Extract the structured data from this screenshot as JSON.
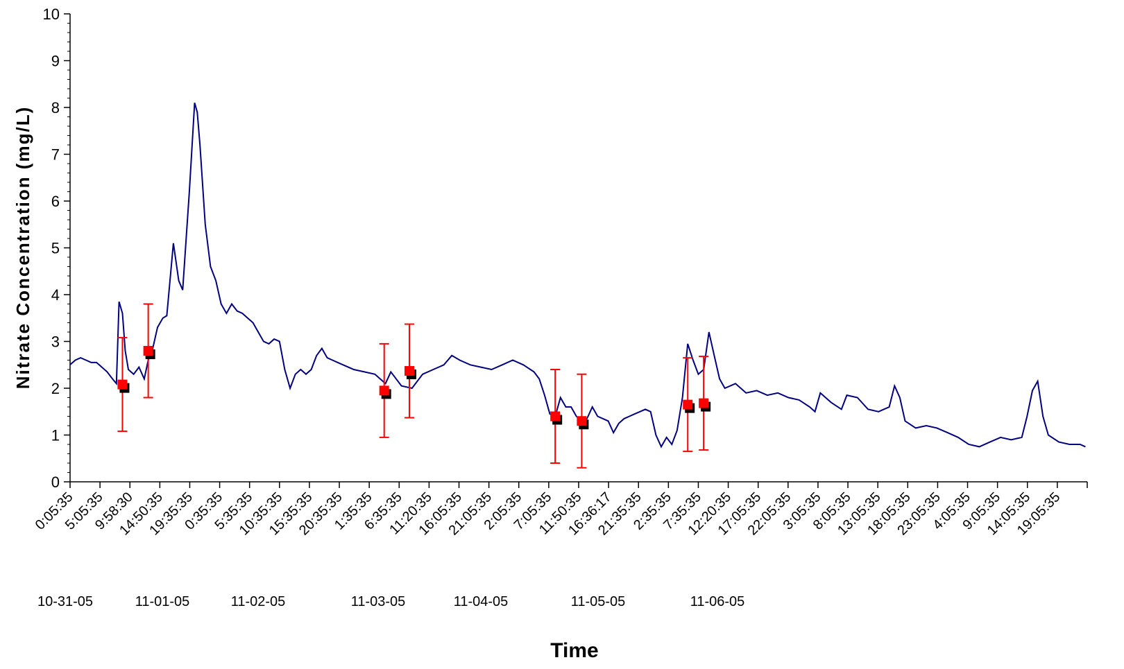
{
  "chart_data": {
    "type": "line",
    "title": "",
    "xlabel": "Time",
    "ylabel": "Nitrate Concentration (mg/L)",
    "ylim": [
      0,
      10
    ],
    "yticks": [
      0,
      1,
      2,
      3,
      4,
      5,
      6,
      7,
      8,
      9,
      10
    ],
    "grid": false,
    "legend": "none",
    "x_start": "10-31-05 0:05:35",
    "x_end": "11-07-05 23:55:35",
    "x_tick_labels": [
      "0:05:35",
      "5:05:35",
      "9:58:30",
      "14:50:35",
      "19:35:35",
      "0:35:35",
      "5:35:35",
      "10:35:35",
      "15:35:35",
      "20:35:35",
      "1:35:35",
      "6:35:35",
      "11:20:35",
      "16:05:35",
      "21:05:35",
      "2:05:35",
      "7:05:35",
      "11:50:35",
      "16:36:17",
      "21:35:35",
      "2:35:35",
      "7:35:35",
      "12:20:35",
      "17:05:35",
      "22:05:35",
      "3:05:35",
      "8:05:35",
      "13:05:35",
      "18:05:35",
      "23:05:35",
      "4:05:35",
      "9:05:35",
      "14:05:35",
      "19:05:35"
    ],
    "date_labels": [
      "10-31-05",
      "11-01-05",
      "11-02-05",
      "11-03-05",
      "11-04-05",
      "11-05-05",
      "11-06-05"
    ],
    "series": [
      {
        "type": "line",
        "color": "#000080",
        "points": [
          [
            "10-31-05 0:05",
            2.5
          ],
          [
            "10-31-05 1:05",
            2.6
          ],
          [
            "10-31-05 2:05",
            2.65
          ],
          [
            "10-31-05 3:05",
            2.6
          ],
          [
            "10-31-05 4:05",
            2.55
          ],
          [
            "10-31-05 5:05",
            2.55
          ],
          [
            "10-31-05 6:05",
            2.45
          ],
          [
            "10-31-05 7:05",
            2.35
          ],
          [
            "10-31-05 8:05",
            2.2
          ],
          [
            "10-31-05 8:50",
            2.1
          ],
          [
            "10-31-05 9:20",
            3.85
          ],
          [
            "10-31-05 9:58",
            3.6
          ],
          [
            "10-31-05 10:30",
            2.8
          ],
          [
            "10-31-05 11:05",
            2.4
          ],
          [
            "10-31-05 12:05",
            2.3
          ],
          [
            "10-31-05 13:05",
            2.45
          ],
          [
            "10-31-05 14:05",
            2.2
          ],
          [
            "10-31-05 14:50",
            2.6
          ],
          [
            "10-31-05 15:35",
            2.8
          ],
          [
            "10-31-05 16:35",
            3.3
          ],
          [
            "10-31-05 17:35",
            3.5
          ],
          [
            "10-31-05 18:20",
            3.55
          ],
          [
            "10-31-05 19:35",
            5.1
          ],
          [
            "10-31-05 20:35",
            4.3
          ],
          [
            "10-31-05 21:20",
            4.1
          ],
          [
            "10-31-05 22:35",
            6.2
          ],
          [
            "10-31-05 23:35",
            8.1
          ],
          [
            "11-01-05 0:05",
            7.9
          ],
          [
            "11-01-05 0:35",
            7.2
          ],
          [
            "11-01-05 1:35",
            5.5
          ],
          [
            "11-01-05 2:35",
            4.6
          ],
          [
            "11-01-05 3:35",
            4.3
          ],
          [
            "11-01-05 4:35",
            3.8
          ],
          [
            "11-01-05 5:35",
            3.6
          ],
          [
            "11-01-05 6:35",
            3.8
          ],
          [
            "11-01-05 7:35",
            3.65
          ],
          [
            "11-01-05 8:35",
            3.6
          ],
          [
            "11-01-05 9:35",
            3.5
          ],
          [
            "11-01-05 10:35",
            3.4
          ],
          [
            "11-01-05 11:35",
            3.2
          ],
          [
            "11-01-05 12:35",
            3.0
          ],
          [
            "11-01-05 13:35",
            2.95
          ],
          [
            "11-01-05 14:35",
            3.05
          ],
          [
            "11-01-05 15:35",
            3.0
          ],
          [
            "11-01-05 16:35",
            2.4
          ],
          [
            "11-01-05 17:35",
            2.0
          ],
          [
            "11-01-05 18:35",
            2.3
          ],
          [
            "11-01-05 19:35",
            2.4
          ],
          [
            "11-01-05 20:35",
            2.3
          ],
          [
            "11-01-05 21:35",
            2.4
          ],
          [
            "11-01-05 22:35",
            2.7
          ],
          [
            "11-01-05 23:35",
            2.85
          ],
          [
            "11-02-05 0:35",
            2.65
          ],
          [
            "11-02-05 1:35",
            2.6
          ],
          [
            "11-02-05 2:35",
            2.55
          ],
          [
            "11-02-05 3:35",
            2.5
          ],
          [
            "11-02-05 5:35",
            2.4
          ],
          [
            "11-02-05 7:35",
            2.35
          ],
          [
            "11-02-05 9:35",
            2.3
          ],
          [
            "11-02-05 11:35",
            2.1
          ],
          [
            "11-02-05 12:35",
            2.35
          ],
          [
            "11-02-05 14:35",
            2.05
          ],
          [
            "11-02-05 16:35",
            2.0
          ],
          [
            "11-02-05 18:35",
            2.3
          ],
          [
            "11-02-05 20:35",
            2.4
          ],
          [
            "11-02-05 22:35",
            2.5
          ],
          [
            "11-03-05 0:05",
            2.7
          ],
          [
            "11-03-05 1:35",
            2.6
          ],
          [
            "11-03-05 3:35",
            2.5
          ],
          [
            "11-03-05 5:35",
            2.45
          ],
          [
            "11-03-05 7:35",
            2.4
          ],
          [
            "11-03-05 9:35",
            2.5
          ],
          [
            "11-03-05 11:35",
            2.6
          ],
          [
            "11-03-05 13:35",
            2.5
          ],
          [
            "11-03-05 15:35",
            2.35
          ],
          [
            "11-03-05 16:35",
            2.2
          ],
          [
            "11-03-05 17:35",
            1.85
          ],
          [
            "11-03-05 18:35",
            1.45
          ],
          [
            "11-03-05 19:35",
            1.4
          ],
          [
            "11-03-05 20:35",
            1.8
          ],
          [
            "11-03-05 21:35",
            1.6
          ],
          [
            "11-03-05 22:35",
            1.6
          ],
          [
            "11-03-05 23:35",
            1.4
          ],
          [
            "11-04-05 0:35",
            1.3
          ],
          [
            "11-04-05 1:35",
            1.35
          ],
          [
            "11-04-05 2:35",
            1.6
          ],
          [
            "11-04-05 3:35",
            1.4
          ],
          [
            "11-04-05 4:35",
            1.35
          ],
          [
            "11-04-05 5:35",
            1.3
          ],
          [
            "11-04-05 6:35",
            1.05
          ],
          [
            "11-04-05 7:35",
            1.25
          ],
          [
            "11-04-05 8:35",
            1.35
          ],
          [
            "11-04-05 9:35",
            1.4
          ],
          [
            "11-04-05 10:35",
            1.45
          ],
          [
            "11-04-05 11:35",
            1.5
          ],
          [
            "11-04-05 12:35",
            1.55
          ],
          [
            "11-04-05 13:35",
            1.5
          ],
          [
            "11-04-05 14:35",
            1.0
          ],
          [
            "11-04-05 15:35",
            0.75
          ],
          [
            "11-04-05 16:35",
            0.95
          ],
          [
            "11-04-05 17:35",
            0.8
          ],
          [
            "11-04-05 18:35",
            1.1
          ],
          [
            "11-04-05 19:35",
            1.8
          ],
          [
            "11-04-05 20:35",
            2.95
          ],
          [
            "11-04-05 21:35",
            2.6
          ],
          [
            "11-04-05 22:35",
            2.3
          ],
          [
            "11-04-05 23:35",
            2.4
          ],
          [
            "11-05-05 0:35",
            3.2
          ],
          [
            "11-05-05 1:35",
            2.7
          ],
          [
            "11-05-05 2:35",
            2.2
          ],
          [
            "11-05-05 3:35",
            2.0
          ],
          [
            "11-05-05 5:35",
            2.1
          ],
          [
            "11-05-05 7:35",
            1.9
          ],
          [
            "11-05-05 9:35",
            1.95
          ],
          [
            "11-05-05 11:35",
            1.85
          ],
          [
            "11-05-05 13:35",
            1.9
          ],
          [
            "11-05-05 15:35",
            1.8
          ],
          [
            "11-05-05 17:35",
            1.75
          ],
          [
            "11-05-05 19:35",
            1.6
          ],
          [
            "11-05-05 20:35",
            1.5
          ],
          [
            "11-05-05 21:35",
            1.9
          ],
          [
            "11-05-05 23:35",
            1.7
          ],
          [
            "11-06-05 1:35",
            1.55
          ],
          [
            "11-06-05 2:35",
            1.85
          ],
          [
            "11-06-05 4:35",
            1.8
          ],
          [
            "11-06-05 6:35",
            1.55
          ],
          [
            "11-06-05 8:35",
            1.5
          ],
          [
            "11-06-05 10:35",
            1.6
          ],
          [
            "11-06-05 11:35",
            2.05
          ],
          [
            "11-06-05 12:35",
            1.8
          ],
          [
            "11-06-05 13:35",
            1.3
          ],
          [
            "11-06-05 15:35",
            1.15
          ],
          [
            "11-06-05 17:35",
            1.2
          ],
          [
            "11-06-05 19:35",
            1.15
          ],
          [
            "11-06-05 21:35",
            1.05
          ],
          [
            "11-06-05 23:35",
            0.95
          ],
          [
            "11-07-05 1:35",
            0.8
          ],
          [
            "11-07-05 3:35",
            0.75
          ],
          [
            "11-07-05 5:35",
            0.85
          ],
          [
            "11-07-05 7:35",
            0.95
          ],
          [
            "11-07-05 9:35",
            0.9
          ],
          [
            "11-07-05 11:35",
            0.95
          ],
          [
            "11-07-05 12:35",
            1.4
          ],
          [
            "11-07-05 13:35",
            1.95
          ],
          [
            "11-07-05 14:35",
            2.15
          ],
          [
            "11-07-05 15:35",
            1.4
          ],
          [
            "11-07-05 16:35",
            1.0
          ],
          [
            "11-07-05 18:35",
            0.85
          ],
          [
            "11-07-05 20:35",
            0.8
          ],
          [
            "11-07-05 22:35",
            0.8
          ],
          [
            "11-07-05 23:35",
            0.75
          ]
        ]
      },
      {
        "type": "scatter",
        "marker": "square",
        "color": "#ff0000",
        "shadow_color": "#000000",
        "error_bar_color": "#ff0000",
        "points": [
          {
            "x": "10-31-05 9:58",
            "y": 2.08,
            "err": 1.0
          },
          {
            "x": "10-31-05 14:50",
            "y": 2.8,
            "err": 1.0
          },
          {
            "x": "11-02-05 11:20",
            "y": 1.95,
            "err": 1.0
          },
          {
            "x": "11-02-05 16:05",
            "y": 2.37,
            "err": 1.0
          },
          {
            "x": "11-03-05 19:35",
            "y": 1.4,
            "err": 1.0
          },
          {
            "x": "11-04-05 0:35",
            "y": 1.3,
            "err": 1.0
          },
          {
            "x": "11-04-05 20:35",
            "y": 1.65,
            "err": 1.0
          },
          {
            "x": "11-04-05 23:35",
            "y": 1.68,
            "err": 1.0
          }
        ]
      }
    ]
  }
}
